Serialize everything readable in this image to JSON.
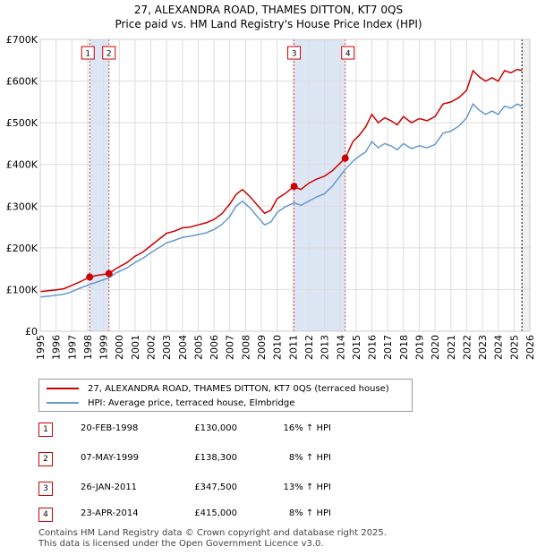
{
  "title_line1": "27, ALEXANDRA ROAD, THAMES DITTON, KT7 0QS",
  "title_line2": "Price paid vs. HM Land Registry's House Price Index (HPI)",
  "legend": {
    "property": "27, ALEXANDRA ROAD, THAMES DITTON, KT7 0QS (terraced house)",
    "hpi": "HPI: Average price, terraced house, Elmbridge"
  },
  "sales": [
    {
      "num": "1",
      "date": "20-FEB-1998",
      "price": "£130,000",
      "hpi": "16% ↑ HPI"
    },
    {
      "num": "2",
      "date": "07-MAY-1999",
      "price": "£138,300",
      "hpi": "8% ↑ HPI"
    },
    {
      "num": "3",
      "date": "26-JAN-2011",
      "price": "£347,500",
      "hpi": "13% ↑ HPI"
    },
    {
      "num": "4",
      "date": "23-APR-2014",
      "price": "£415,000",
      "hpi": "8% ↑ HPI"
    }
  ],
  "footer_line1": "Contains HM Land Registry data © Crown copyright and database right 2025.",
  "footer_line2": "This data is licensed under the Open Government Licence v3.0.",
  "colors": {
    "property": "#cc0000",
    "hpi": "#6699cc",
    "shade": "#dde6f5",
    "grid": "#dddddd"
  },
  "chart_data": {
    "type": "line",
    "title": "Price paid vs. HM Land Registry's House Price Index (HPI)",
    "xlabel": "",
    "ylabel": "",
    "xlim": [
      1995,
      2026
    ],
    "ylim": [
      0,
      700000
    ],
    "y_ticks": [
      {
        "value": 0,
        "label": "£0"
      },
      {
        "value": 100000,
        "label": "£100K"
      },
      {
        "value": 200000,
        "label": "£200K"
      },
      {
        "value": 300000,
        "label": "£300K"
      },
      {
        "value": 400000,
        "label": "£400K"
      },
      {
        "value": 500000,
        "label": "£500K"
      },
      {
        "value": 600000,
        "label": "£600K"
      },
      {
        "value": 700000,
        "label": "£700K"
      }
    ],
    "x_ticks": [
      "1995",
      "1996",
      "1997",
      "1998",
      "1999",
      "2000",
      "2001",
      "2002",
      "2003",
      "2004",
      "2005",
      "2006",
      "2007",
      "2008",
      "2009",
      "2010",
      "2011",
      "2012",
      "2013",
      "2014",
      "2015",
      "2016",
      "2017",
      "2018",
      "2019",
      "2020",
      "2021",
      "2022",
      "2023",
      "2024",
      "2025",
      "2026"
    ],
    "grid": true,
    "shaded_ranges": [
      [
        1998.13,
        1999.35
      ],
      [
        2011.07,
        2014.31
      ]
    ],
    "sale_markers": [
      {
        "num": "1",
        "x": 1998.13,
        "y": 130000
      },
      {
        "num": "2",
        "x": 1999.35,
        "y": 138300
      },
      {
        "num": "3",
        "x": 2011.07,
        "y": 347500
      },
      {
        "num": "4",
        "x": 2014.31,
        "y": 415000
      }
    ],
    "series": [
      {
        "name": "27, ALEXANDRA ROAD, THAMES DITTON, KT7 0QS (terraced house)",
        "x": [
          1995,
          1995.5,
          1996,
          1996.5,
          1997,
          1997.5,
          1998.13,
          1998.6,
          1999.35,
          1999.8,
          2000.5,
          2001,
          2001.5,
          2002,
          2002.5,
          2003,
          2003.5,
          2004,
          2004.5,
          2005,
          2005.5,
          2006,
          2006.5,
          2007,
          2007.4,
          2007.8,
          2008.3,
          2008.8,
          2009.2,
          2009.6,
          2010,
          2010.5,
          2011.07,
          2011.5,
          2012,
          2012.5,
          2013,
          2013.5,
          2014.31,
          2014.8,
          2015.2,
          2015.6,
          2016,
          2016.4,
          2016.8,
          2017.2,
          2017.6,
          2018,
          2018.5,
          2019,
          2019.5,
          2020,
          2020.5,
          2021,
          2021.5,
          2022,
          2022.4,
          2022.8,
          2023.2,
          2023.6,
          2024,
          2024.4,
          2024.8,
          2025.2,
          2025.5
        ],
        "values": [
          95000,
          97000,
          99000,
          102000,
          110000,
          118000,
          130000,
          134000,
          138300,
          150000,
          165000,
          180000,
          190000,
          205000,
          220000,
          235000,
          240000,
          248000,
          250000,
          255000,
          260000,
          268000,
          282000,
          305000,
          328000,
          340000,
          322000,
          300000,
          283000,
          290000,
          318000,
          330000,
          347500,
          340000,
          355000,
          365000,
          372000,
          385000,
          415000,
          455000,
          470000,
          490000,
          520000,
          500000,
          512000,
          505000,
          495000,
          515000,
          500000,
          510000,
          505000,
          515000,
          545000,
          550000,
          560000,
          578000,
          625000,
          610000,
          600000,
          608000,
          600000,
          625000,
          620000,
          628000,
          625000
        ]
      },
      {
        "name": "HPI: Average price, terraced house, Elmbridge",
        "x": [
          1995,
          1995.5,
          1996,
          1996.5,
          1997,
          1997.5,
          1998.13,
          1998.6,
          1999.35,
          1999.8,
          2000.5,
          2001,
          2001.5,
          2002,
          2002.5,
          2003,
          2003.5,
          2004,
          2004.5,
          2005,
          2005.5,
          2006,
          2006.5,
          2007,
          2007.4,
          2007.8,
          2008.3,
          2008.8,
          2009.2,
          2009.6,
          2010,
          2010.5,
          2011.07,
          2011.5,
          2012,
          2012.5,
          2013,
          2013.5,
          2014.31,
          2014.8,
          2015.2,
          2015.6,
          2016,
          2016.4,
          2016.8,
          2017.2,
          2017.6,
          2018,
          2018.5,
          2019,
          2019.5,
          2020,
          2020.5,
          2021,
          2021.5,
          2022,
          2022.4,
          2022.8,
          2023.2,
          2023.6,
          2024,
          2024.4,
          2024.8,
          2025.2,
          2025.5
        ],
        "values": [
          82000,
          84000,
          86000,
          89000,
          95000,
          103000,
          112000,
          118000,
          128000,
          140000,
          152000,
          165000,
          175000,
          188000,
          200000,
          212000,
          218000,
          225000,
          228000,
          232000,
          236000,
          244000,
          256000,
          275000,
          300000,
          312000,
          295000,
          272000,
          255000,
          262000,
          285000,
          298000,
          308000,
          302000,
          312000,
          322000,
          330000,
          348000,
          388000,
          408000,
          420000,
          430000,
          455000,
          440000,
          450000,
          445000,
          435000,
          450000,
          438000,
          445000,
          440000,
          448000,
          475000,
          480000,
          492000,
          512000,
          545000,
          530000,
          520000,
          528000,
          520000,
          540000,
          535000,
          545000,
          540000
        ]
      }
    ]
  }
}
